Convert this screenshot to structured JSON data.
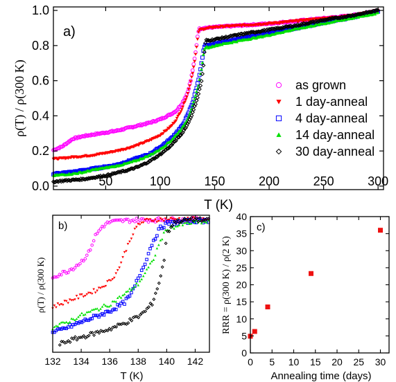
{
  "chart_data": [
    {
      "panel_label": "a)",
      "type": "scatter",
      "xlabel": "T (K)",
      "ylabel": "ρ(T) / ρ(300 K)",
      "xlim": [
        2,
        305
      ],
      "ylim": [
        -0.02,
        1.02
      ],
      "xticks": [
        50,
        100,
        150,
        200,
        250,
        300
      ],
      "yticks": [
        0.0,
        0.2,
        0.4,
        0.6,
        0.8,
        1.0
      ],
      "xtick_labels": [
        "50",
        "100",
        "150",
        "200",
        "250",
        "300"
      ],
      "ytick_labels": [
        "0.0",
        "0.2",
        "0.4",
        "0.6",
        "0.8",
        "1.0"
      ],
      "legend_position": "right",
      "series": [
        {
          "name": "as grown",
          "color": "#ff00ff",
          "marker": "circle-open",
          "points": [
            [
              2,
              0.205
            ],
            [
              10,
              0.225
            ],
            [
              20,
              0.27
            ],
            [
              30,
              0.285
            ],
            [
              40,
              0.295
            ],
            [
              50,
              0.305
            ],
            [
              60,
              0.315
            ],
            [
              70,
              0.33
            ],
            [
              80,
              0.345
            ],
            [
              90,
              0.36
            ],
            [
              100,
              0.38
            ],
            [
              110,
              0.41
            ],
            [
              115,
              0.43
            ],
            [
              120,
              0.47
            ],
            [
              125,
              0.53
            ],
            [
              128,
              0.6
            ],
            [
              131,
              0.7
            ],
            [
              133,
              0.78
            ],
            [
              134,
              0.84
            ],
            [
              135,
              0.88
            ],
            [
              136,
              0.895
            ],
            [
              140,
              0.9
            ],
            [
              150,
              0.905
            ],
            [
              175,
              0.915
            ],
            [
              200,
              0.925
            ],
            [
              225,
              0.94
            ],
            [
              250,
              0.955
            ],
            [
              275,
              0.97
            ],
            [
              300,
              1.0
            ]
          ]
        },
        {
          "name": "1 day-anneal",
          "color": "#ff0000",
          "marker": "triangle-down",
          "points": [
            [
              2,
              0.155
            ],
            [
              10,
              0.158
            ],
            [
              20,
              0.165
            ],
            [
              30,
              0.17
            ],
            [
              40,
              0.178
            ],
            [
              50,
              0.188
            ],
            [
              60,
              0.2
            ],
            [
              70,
              0.215
            ],
            [
              80,
              0.235
            ],
            [
              90,
              0.26
            ],
            [
              100,
              0.29
            ],
            [
              110,
              0.34
            ],
            [
              115,
              0.38
            ],
            [
              120,
              0.44
            ],
            [
              125,
              0.52
            ],
            [
              130,
              0.65
            ],
            [
              133,
              0.77
            ],
            [
              135,
              0.87
            ],
            [
              136,
              0.89
            ],
            [
              140,
              0.895
            ],
            [
              150,
              0.905
            ],
            [
              175,
              0.915
            ],
            [
              200,
              0.925
            ],
            [
              225,
              0.94
            ],
            [
              250,
              0.955
            ],
            [
              275,
              0.97
            ],
            [
              300,
              1.0
            ]
          ]
        },
        {
          "name": "4 day-anneal",
          "color": "#0000ff",
          "marker": "square-open",
          "points": [
            [
              2,
              0.07
            ],
            [
              10,
              0.075
            ],
            [
              20,
              0.08
            ],
            [
              30,
              0.09
            ],
            [
              40,
              0.1
            ],
            [
              50,
              0.11
            ],
            [
              60,
              0.12
            ],
            [
              70,
              0.14
            ],
            [
              80,
              0.16
            ],
            [
              90,
              0.18
            ],
            [
              100,
              0.22
            ],
            [
              110,
              0.27
            ],
            [
              120,
              0.34
            ],
            [
              125,
              0.4
            ],
            [
              130,
              0.48
            ],
            [
              135,
              0.6
            ],
            [
              138,
              0.7
            ],
            [
              140,
              0.78
            ],
            [
              141,
              0.8
            ],
            [
              145,
              0.8
            ],
            [
              150,
              0.81
            ],
            [
              175,
              0.84
            ],
            [
              200,
              0.87
            ],
            [
              225,
              0.9
            ],
            [
              250,
              0.93
            ],
            [
              275,
              0.96
            ],
            [
              300,
              0.995
            ]
          ]
        },
        {
          "name": "14 day-anneal",
          "color": "#00e000",
          "marker": "triangle-up",
          "points": [
            [
              2,
              0.06
            ],
            [
              10,
              0.065
            ],
            [
              20,
              0.07
            ],
            [
              30,
              0.08
            ],
            [
              40,
              0.095
            ],
            [
              50,
              0.105
            ],
            [
              60,
              0.115
            ],
            [
              70,
              0.13
            ],
            [
              80,
              0.15
            ],
            [
              90,
              0.175
            ],
            [
              100,
              0.21
            ],
            [
              110,
              0.26
            ],
            [
              120,
              0.33
            ],
            [
              125,
              0.38
            ],
            [
              130,
              0.46
            ],
            [
              135,
              0.57
            ],
            [
              138,
              0.67
            ],
            [
              140,
              0.76
            ],
            [
              141,
              0.79
            ],
            [
              145,
              0.79
            ],
            [
              150,
              0.8
            ],
            [
              175,
              0.83
            ],
            [
              200,
              0.86
            ],
            [
              225,
              0.895
            ],
            [
              250,
              0.925
            ],
            [
              275,
              0.955
            ],
            [
              300,
              0.985
            ]
          ]
        },
        {
          "name": "30 day-anneal",
          "color": "#000000",
          "marker": "diamond-open",
          "points": [
            [
              2,
              0.025
            ],
            [
              10,
              0.03
            ],
            [
              20,
              0.035
            ],
            [
              30,
              0.04
            ],
            [
              40,
              0.05
            ],
            [
              50,
              0.06
            ],
            [
              60,
              0.075
            ],
            [
              70,
              0.09
            ],
            [
              80,
              0.11
            ],
            [
              90,
              0.14
            ],
            [
              100,
              0.18
            ],
            [
              110,
              0.23
            ],
            [
              120,
              0.3
            ],
            [
              125,
              0.35
            ],
            [
              130,
              0.42
            ],
            [
              135,
              0.52
            ],
            [
              138,
              0.6
            ],
            [
              140,
              0.7
            ],
            [
              141,
              0.8
            ],
            [
              142,
              0.83
            ],
            [
              145,
              0.83
            ],
            [
              150,
              0.835
            ],
            [
              175,
              0.865
            ],
            [
              200,
              0.89
            ],
            [
              225,
              0.915
            ],
            [
              250,
              0.945
            ],
            [
              275,
              0.97
            ],
            [
              300,
              1.0
            ]
          ]
        }
      ]
    },
    {
      "panel_label": "b)",
      "type": "scatter",
      "xlabel": "T (K)",
      "ylabel": "ρ(T) / ρ(300 K)",
      "xlim": [
        132,
        143
      ],
      "ylim": [
        0.0,
        1.0
      ],
      "xticks": [
        132,
        134,
        136,
        138,
        140,
        142
      ],
      "xtick_labels": [
        "132",
        "134",
        "136",
        "138",
        "140",
        "142"
      ],
      "series": [
        {
          "name": "as grown",
          "color": "#ff00ff",
          "marker": "circle-open",
          "points": [
            [
              132,
              0.55
            ],
            [
              132.5,
              0.57
            ],
            [
              133,
              0.59
            ],
            [
              133.5,
              0.62
            ],
            [
              134,
              0.66
            ],
            [
              134.5,
              0.72
            ],
            [
              135,
              0.85
            ],
            [
              135.5,
              0.92
            ],
            [
              136,
              0.95
            ],
            [
              137,
              0.96
            ],
            [
              138,
              0.965
            ],
            [
              139,
              0.965
            ],
            [
              140,
              0.97
            ],
            [
              141,
              0.965
            ],
            [
              142,
              0.97
            ],
            [
              143,
              0.97
            ]
          ]
        },
        {
          "name": "1 day-anneal",
          "color": "#ff0000",
          "marker": "triangle-down",
          "points": [
            [
              132,
              0.33
            ],
            [
              132.5,
              0.35
            ],
            [
              133,
              0.37
            ],
            [
              134,
              0.41
            ],
            [
              135,
              0.45
            ],
            [
              135.5,
              0.48
            ],
            [
              136,
              0.52
            ],
            [
              136.5,
              0.58
            ],
            [
              137,
              0.71
            ],
            [
              137.5,
              0.84
            ],
            [
              138,
              0.93
            ],
            [
              138.5,
              0.96
            ],
            [
              139,
              0.965
            ],
            [
              140,
              0.97
            ],
            [
              142,
              0.97
            ],
            [
              143,
              0.97
            ]
          ]
        },
        {
          "name": "4 day-anneal",
          "color": "#0000ff",
          "marker": "square-open",
          "points": [
            [
              132,
              0.14
            ],
            [
              133,
              0.18
            ],
            [
              134,
              0.22
            ],
            [
              135,
              0.26
            ],
            [
              136,
              0.3
            ],
            [
              137,
              0.36
            ],
            [
              137.5,
              0.42
            ],
            [
              138,
              0.54
            ],
            [
              138.5,
              0.66
            ],
            [
              139,
              0.8
            ],
            [
              139.5,
              0.9
            ],
            [
              140,
              0.94
            ],
            [
              141,
              0.95
            ],
            [
              142,
              0.96
            ],
            [
              143,
              0.96
            ]
          ]
        },
        {
          "name": "14 day-anneal",
          "color": "#00e000",
          "marker": "triangle-up",
          "points": [
            [
              132,
              0.18
            ],
            [
              133,
              0.22
            ],
            [
              134,
              0.27
            ],
            [
              135,
              0.31
            ],
            [
              136,
              0.35
            ],
            [
              137,
              0.42
            ],
            [
              138,
              0.5
            ],
            [
              138.5,
              0.58
            ],
            [
              139,
              0.66
            ],
            [
              139.5,
              0.8
            ],
            [
              140,
              0.9
            ],
            [
              141,
              0.93
            ],
            [
              142,
              0.95
            ],
            [
              143,
              0.95
            ]
          ]
        },
        {
          "name": "30 day-anneal",
          "color": "#000000",
          "marker": "diamond-open",
          "points": [
            [
              132.5,
              0.06
            ],
            [
              133,
              0.08
            ],
            [
              134,
              0.11
            ],
            [
              135,
              0.14
            ],
            [
              136,
              0.17
            ],
            [
              137,
              0.21
            ],
            [
              138,
              0.26
            ],
            [
              138.5,
              0.3
            ],
            [
              139,
              0.36
            ],
            [
              139.5,
              0.52
            ],
            [
              139.8,
              0.66
            ],
            [
              140,
              0.86
            ],
            [
              140.5,
              0.95
            ],
            [
              141,
              0.96
            ],
            [
              142,
              0.97
            ],
            [
              143,
              0.96
            ]
          ]
        }
      ]
    },
    {
      "panel_label": "c)",
      "type": "scatter",
      "xlabel": "Annealing time (days)",
      "ylabel": "RRR = ρ(300 K) / ρ(2 K)",
      "xlim": [
        0,
        32
      ],
      "ylim": [
        0,
        40
      ],
      "xticks": [
        0,
        5,
        10,
        15,
        20,
        25,
        30
      ],
      "yticks": [
        0,
        5,
        10,
        15,
        20,
        25,
        30,
        35,
        40
      ],
      "xtick_labels": [
        "0",
        "5",
        "10",
        "15",
        "20",
        "25",
        "30"
      ],
      "ytick_labels": [
        "0",
        "5",
        "10",
        "15",
        "20",
        "25",
        "30",
        "35",
        "40"
      ],
      "series": [
        {
          "color": "#ee1111",
          "marker": "square-filled",
          "points": [
            [
              0,
              4.9
            ],
            [
              1,
              6.3
            ],
            [
              4,
              13.5
            ],
            [
              14,
              23.3
            ],
            [
              30,
              36
            ]
          ]
        }
      ]
    }
  ]
}
